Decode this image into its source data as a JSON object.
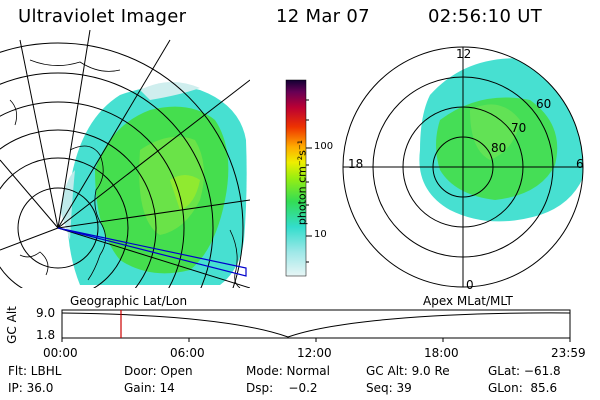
{
  "header": {
    "instrument": "Ultraviolet Imager",
    "date": "12 Mar 07",
    "time": "02:56:10 UT"
  },
  "colorbar": {
    "unit_label": "photon cm⁻²s⁻¹",
    "ticks": [
      "100",
      "10"
    ]
  },
  "polar_plot": {
    "mlt_labels": [
      "12",
      "18",
      "6",
      "0"
    ],
    "lat_labels": [
      "60",
      "70",
      "80"
    ]
  },
  "panel_labels": {
    "left": "Geographic Lat/Lon",
    "right": "Apex MLat/MLT"
  },
  "alt_plot": {
    "axis_label": "GC Alt",
    "y_ticks": [
      "9.0",
      "1.8"
    ],
    "x_ticks": [
      "00:00",
      "06:00",
      "12:00",
      "18:00",
      "23:59"
    ]
  },
  "footer": {
    "flt": "Flt: LBHL",
    "door": "Door: Open",
    "mode": "Mode: Normal",
    "gcalt": "GC Alt: 9.0 Re",
    "glat": "GLat: −61.8",
    "ip": "IP: 36.0",
    "gain": "Gain: 14",
    "dsp": "Dsp:    −0.2",
    "seq": "Seq: 39",
    "glon": "GLon:  85.6"
  },
  "colors": {
    "aurora_green": "#44dd22",
    "aurora_cyan": "#33ddcc",
    "orbit_line": "#0000cc",
    "time_marker": "#cc0000"
  }
}
